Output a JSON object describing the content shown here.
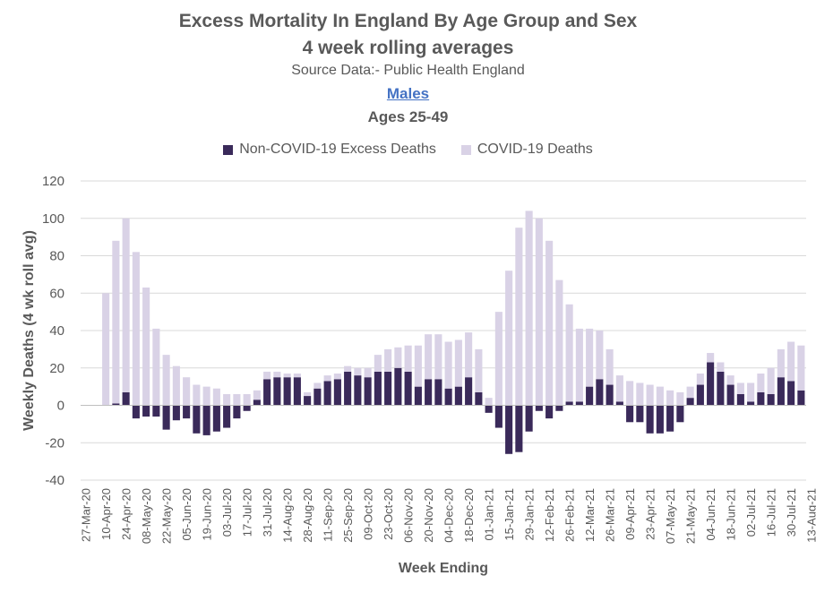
{
  "titles": {
    "line1": "Excess Mortality In England By Age Group and Sex",
    "line2": "4 week rolling averages",
    "source": "Source Data:- Public Health England",
    "sex": "Males",
    "age": "Ages 25-49"
  },
  "colors": {
    "non_covid": "#3a2a5a",
    "covid": "#d9d2e6",
    "grid": "#d9d9d9"
  },
  "chart_data": {
    "type": "bar",
    "stacked": true,
    "ylabel": "Weekly Deaths (4 wk roll avg)",
    "xlabel": "Week Ending",
    "ylim": [
      -40,
      120
    ],
    "yticks": [
      -40,
      -20,
      0,
      20,
      40,
      60,
      80,
      100,
      120
    ],
    "grid": true,
    "legend_position": "top",
    "tick_labels": [
      "27-Mar-20",
      "10-Apr-20",
      "24-Apr-20",
      "08-May-20",
      "22-May-20",
      "05-Jun-20",
      "19-Jun-20",
      "03-Jul-20",
      "17-Jul-20",
      "31-Jul-20",
      "14-Aug-20",
      "28-Aug-20",
      "11-Sep-20",
      "25-Sep-20",
      "09-Oct-20",
      "23-Oct-20",
      "06-Nov-20",
      "20-Nov-20",
      "04-Dec-20",
      "18-Dec-20",
      "01-Jan-21",
      "15-Jan-21",
      "29-Jan-21",
      "12-Feb-21",
      "26-Feb-21",
      "12-Mar-21",
      "26-Mar-21",
      "09-Apr-21",
      "23-Apr-21",
      "07-May-21",
      "21-May-21",
      "04-Jun-21",
      "18-Jun-21",
      "02-Jul-21",
      "16-Jul-21",
      "30-Jul-21",
      "13-Aug-21"
    ],
    "series": [
      {
        "name": "Non-COVID-19 Excess Deaths",
        "values": [
          0,
          0,
          0,
          1,
          7,
          -7,
          -6,
          -6,
          -13,
          -8,
          -7,
          -15,
          -16,
          -14,
          -12,
          -7,
          -3,
          3,
          14,
          15,
          15,
          15,
          5,
          9,
          13,
          14,
          18,
          16,
          15,
          18,
          18,
          20,
          18,
          10,
          14,
          14,
          9,
          10,
          15,
          7,
          -4,
          -12,
          -26,
          -25,
          -14,
          -3,
          -7,
          -3,
          2,
          2,
          10,
          14,
          11,
          2,
          -9,
          -9,
          -15,
          -15,
          -14,
          -9,
          4,
          11,
          23,
          18,
          11,
          6,
          2,
          7,
          6,
          15,
          13,
          8
        ]
      },
      {
        "name": "COVID-19 Deaths",
        "values": [
          0,
          0,
          60,
          87,
          93,
          82,
          63,
          41,
          27,
          21,
          15,
          11,
          10,
          9,
          6,
          6,
          6,
          5,
          4,
          3,
          2,
          2,
          2,
          3,
          3,
          3,
          3,
          4,
          5,
          9,
          12,
          11,
          14,
          22,
          24,
          24,
          25,
          25,
          24,
          23,
          4,
          50,
          72,
          95,
          104,
          100,
          88,
          67,
          52,
          39,
          31,
          26,
          19,
          14,
          13,
          12,
          11,
          10,
          8,
          7,
          6,
          6,
          5,
          5,
          5,
          6,
          10,
          10,
          14,
          15,
          21,
          24
        ]
      }
    ]
  }
}
